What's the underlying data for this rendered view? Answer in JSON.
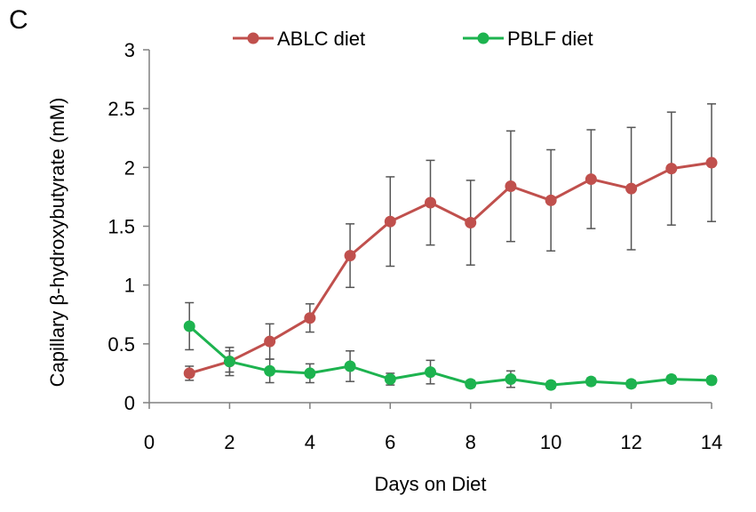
{
  "panel_label": "C",
  "chart_data": {
    "type": "line",
    "title": "",
    "xlabel": "Days on Diet",
    "ylabel": "Capillary β-hydroxybutyrate (mM)",
    "xlim": [
      0,
      14
    ],
    "ylim": [
      0,
      3
    ],
    "x_ticks": [
      0,
      2,
      4,
      6,
      8,
      10,
      12,
      14
    ],
    "x_tick_labels": [
      "0",
      "2",
      "4",
      "6",
      "8",
      "10",
      "12",
      "14"
    ],
    "y_ticks": [
      0,
      0.5,
      1,
      1.5,
      2,
      2.5,
      3
    ],
    "y_tick_labels": [
      "0",
      "0.5",
      "1",
      "1.5",
      "2",
      "2.5",
      "3"
    ],
    "grid": false,
    "legend_position": "top",
    "series": [
      {
        "name": "ABLC diet",
        "color": "#c0504d",
        "x": [
          1,
          2,
          3,
          4,
          5,
          6,
          7,
          8,
          9,
          10,
          11,
          12,
          13,
          14
        ],
        "values": [
          0.25,
          0.35,
          0.52,
          0.72,
          1.25,
          1.54,
          1.7,
          1.53,
          1.84,
          1.72,
          1.9,
          1.82,
          1.99,
          2.04
        ],
        "errors": [
          0.06,
          0.09,
          0.15,
          0.12,
          0.27,
          0.38,
          0.36,
          0.36,
          0.47,
          0.43,
          0.42,
          0.52,
          0.48,
          0.5
        ]
      },
      {
        "name": "PBLF diet",
        "color": "#1db34f",
        "x": [
          1,
          2,
          3,
          4,
          5,
          6,
          7,
          8,
          9,
          10,
          11,
          12,
          13,
          14
        ],
        "values": [
          0.65,
          0.35,
          0.27,
          0.25,
          0.31,
          0.2,
          0.26,
          0.16,
          0.2,
          0.15,
          0.18,
          0.16,
          0.2,
          0.19
        ],
        "errors": [
          0.2,
          0.12,
          0.1,
          0.08,
          0.13,
          0.05,
          0.1,
          0.03,
          0.07,
          0.03,
          0.03,
          0.03,
          0.03,
          0.03
        ]
      }
    ]
  }
}
